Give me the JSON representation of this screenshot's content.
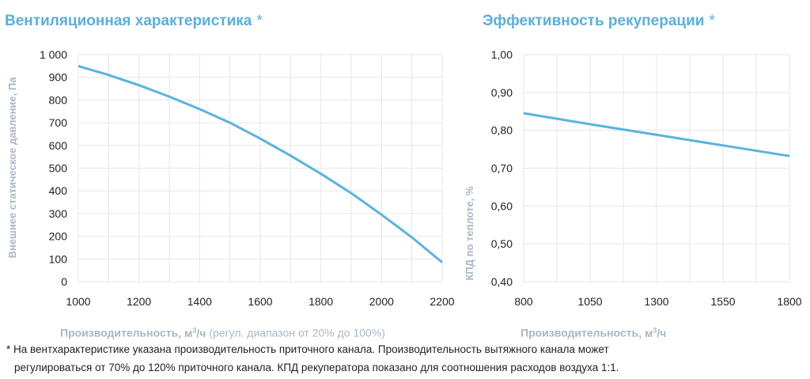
{
  "titles": {
    "left": "Вентиляционная характеристика",
    "right": "Эффективность рекуперации",
    "asterisk": "*"
  },
  "axis_labels": {
    "left_y": "Внешнее статическое давление, Па",
    "left_x_bold": "Производительность",
    "left_x_unit_pre": ", м",
    "left_x_unit_sup": "3",
    "left_x_unit_post": "/ч",
    "left_x_note": "(регул. диапазон от 20% до 100%)",
    "right_y": "КПД по теплоте, %",
    "right_x_bold": "Производительность",
    "right_x_unit_pre": ", м",
    "right_x_unit_sup": "3",
    "right_x_unit_post": "/ч"
  },
  "footnote": {
    "line1": "* На вентхарактеристике указана производительность приточного канала. Производительность вытяжного канала может",
    "line2": "регулироваться от 70% до 120% приточного канала. КПД рекуператора показано для соотношения расходов воздуха 1:1."
  },
  "colors": {
    "line": "#5ab3df",
    "title": "#5aafdc",
    "axis_label": "#aab7c4",
    "grid": "#e6e6e6"
  },
  "chart_data": [
    {
      "type": "line",
      "title": "Вентиляционная характеристика",
      "xlabel": "Производительность, м³/ч (регул. диапазон от 20% до 100%)",
      "ylabel": "Внешнее статическое давление, Па",
      "xlim": [
        1000,
        2200
      ],
      "ylim": [
        0,
        1000
      ],
      "x_ticks": [
        1000,
        1200,
        1400,
        1600,
        1800,
        2000,
        2200
      ],
      "x_tick_labels": [
        "1000",
        "1200",
        "1400",
        "1600",
        "1800",
        "2000",
        "2200"
      ],
      "x_minor_step": 100,
      "y_ticks": [
        0,
        100,
        200,
        300,
        400,
        500,
        600,
        700,
        800,
        900,
        1000
      ],
      "y_tick_labels": [
        "0",
        "100",
        "200",
        "300",
        "400",
        "500",
        "600",
        "700",
        "800",
        "900",
        "1 000"
      ],
      "grid": true,
      "x": [
        1000,
        1100,
        1200,
        1300,
        1400,
        1500,
        1600,
        1700,
        1800,
        1900,
        2000,
        2100,
        2200
      ],
      "y": [
        950,
        910,
        865,
        815,
        760,
        700,
        630,
        555,
        475,
        390,
        295,
        195,
        85
      ]
    },
    {
      "type": "line",
      "title": "Эффективность рекуперации",
      "xlabel": "Производительность, м³/ч",
      "ylabel": "КПД по теплоте, %",
      "xlim": [
        800,
        1800
      ],
      "ylim": [
        0.4,
        1.0
      ],
      "x_ticks": [
        800,
        1050,
        1300,
        1550,
        1800
      ],
      "x_tick_labels": [
        "800",
        "1050",
        "1300",
        "1550",
        "1800"
      ],
      "x_minor_step": 125,
      "y_ticks": [
        0.4,
        0.5,
        0.6,
        0.7,
        0.8,
        0.9,
        1.0
      ],
      "y_tick_labels": [
        "0,40",
        "0,50",
        "0,60",
        "0,70",
        "0,80",
        "0,90",
        "1,00"
      ],
      "grid": true,
      "x": [
        800,
        1050,
        1300,
        1550,
        1800
      ],
      "y": [
        0.845,
        0.816,
        0.788,
        0.76,
        0.732
      ]
    }
  ]
}
